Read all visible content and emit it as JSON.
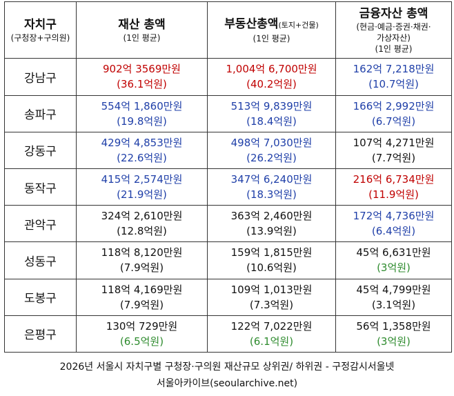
{
  "header": {
    "col0_title": "자치구",
    "col0_sub": "(구청장+구의원)",
    "col1_title": "재산 총액",
    "col1_sub": "(1인 평균)",
    "col2_title": "부동산총액",
    "col2_title_small": "(토지+건물)",
    "col2_sub": "(1인 평균)",
    "col3_title": "금융자산 총액",
    "col3_sub1": "(현금·예금·증권·채권·",
    "col3_sub2": "가상자산)",
    "col3_sub3": "(1인 평균)"
  },
  "rows": [
    {
      "region": "강남구",
      "total": {
        "l1": "902억 3569만원",
        "l2": "(36.1억원)",
        "color": "#c00000"
      },
      "realestate": {
        "l1": "1,004억 6,700만원",
        "l2": "(40.2억원)",
        "color": "#c00000"
      },
      "financial": {
        "l1": "162억 7,218만원",
        "l2": "(10.7억원)",
        "color": "#1f3fa8"
      }
    },
    {
      "region": "송파구",
      "total": {
        "l1": "554억 1,860만원",
        "l2": "(19.8억원)",
        "color": "#1f3fa8"
      },
      "realestate": {
        "l1": "513억 9,839만원",
        "l2": "(18.4억원)",
        "color": "#1f3fa8"
      },
      "financial": {
        "l1": "166억 2,992만원",
        "l2": "(6.7억원)",
        "color": "#1f3fa8"
      }
    },
    {
      "region": "강동구",
      "total": {
        "l1": "429억 4,853만원",
        "l2": "(22.6억원)",
        "color": "#1f3fa8"
      },
      "realestate": {
        "l1": "498억 7,030만원",
        "l2": "(26.2억원)",
        "color": "#1f3fa8"
      },
      "financial": {
        "l1": "107억 4,271만원",
        "l2": "(7.7억원)",
        "color": "#111111"
      }
    },
    {
      "region": "동작구",
      "total": {
        "l1": "415억 2,574만원",
        "l2": "(21.9억원)",
        "color": "#1f3fa8"
      },
      "realestate": {
        "l1": "347억 6,240만원",
        "l2": "(18.3억원)",
        "color": "#1f3fa8"
      },
      "financial": {
        "l1": "216억 6,734만원",
        "l2": "(11.9억원)",
        "color": "#c00000"
      }
    },
    {
      "region": "관악구",
      "total": {
        "l1": "324억 2,610만원",
        "l2": "(12.8억원)",
        "color": "#111111"
      },
      "realestate": {
        "l1": "363억 2,460만원",
        "l2": "(13.9억원)",
        "color": "#111111"
      },
      "financial": {
        "l1": "172억 4,736만원",
        "l2": "(6.4억원)",
        "color": "#1f3fa8"
      }
    },
    {
      "region": "성동구",
      "total": {
        "l1": "118억 8,120만원",
        "l2": "(7.9억원)",
        "color": "#111111"
      },
      "realestate": {
        "l1": "159억 1,815만원",
        "l2": "(10.6억원)",
        "color": "#111111"
      },
      "financial": {
        "l1": "45억 6,631만원",
        "l2": "(3억원)",
        "color": "#111111",
        "l2color": "#2e8b2e"
      }
    },
    {
      "region": "도봉구",
      "total": {
        "l1": "118억 4,169만원",
        "l2": "(7.9억원)",
        "color": "#111111"
      },
      "realestate": {
        "l1": "109억 1,013만원",
        "l2": "(7.3억원)",
        "color": "#111111"
      },
      "financial": {
        "l1": "45억 4,799만원",
        "l2": "(3.1억원)",
        "color": "#111111"
      }
    },
    {
      "region": "은평구",
      "total": {
        "l1": "130억 729만원",
        "l2": "(6.5억원)",
        "color": "#111111",
        "l2color": "#2e8b2e"
      },
      "realestate": {
        "l1": "122억 7,022만원",
        "l2": "(6.1억원)",
        "color": "#111111",
        "l2color": "#2e8b2e"
      },
      "financial": {
        "l1": "56억 1,358만원",
        "l2": "(3억원)",
        "color": "#111111",
        "l2color": "#2e8b2e"
      }
    }
  ],
  "caption": {
    "line1": "2026년 서울시 자치구별 구청장·구의원 재산규모 상위권/ 하위권 - 구정감시서울넷",
    "line2": "서울아카이브(seoularchive.net)"
  }
}
